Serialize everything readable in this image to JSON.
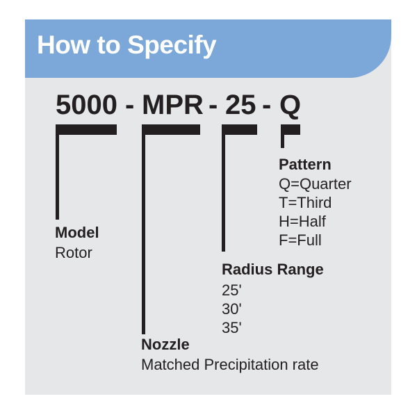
{
  "header": {
    "title": "How to Specify"
  },
  "code": {
    "model": "5000",
    "nozzle": "MPR",
    "radius": "25",
    "pattern": "Q",
    "separator": "-"
  },
  "segments": {
    "model": {
      "title": "Model",
      "options": [
        "Rotor"
      ]
    },
    "nozzle": {
      "title": "Nozzle",
      "options": [
        "Matched Precipitation rate"
      ]
    },
    "radius": {
      "title": "Radius Range",
      "options": [
        "25'",
        "30'",
        "35'"
      ]
    },
    "pattern": {
      "title": "Pattern",
      "options": [
        "Q=Quarter",
        "T=Third",
        "H=Half",
        "F=Full"
      ]
    }
  },
  "colors": {
    "header_bg": "#7ba7d9",
    "card_bg": "#e6e7e8",
    "ink": "#231f20",
    "header_text": "#ffffff"
  }
}
